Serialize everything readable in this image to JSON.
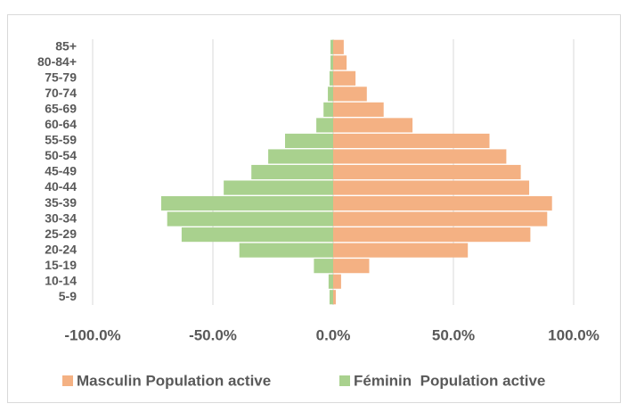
{
  "chart_data": {
    "type": "pyramid",
    "categories": [
      "85+",
      "80-84+",
      "75-79",
      "70-74",
      "65-69",
      "60-64",
      "55-59",
      "50-54",
      "45-49",
      "40-44",
      "35-39",
      "30-34",
      "25-29",
      "20-24",
      "15-19",
      "10-14",
      "5-9"
    ],
    "series": [
      {
        "name": "Masculin Population active",
        "color": "#f4b183",
        "values": [
          4.4,
          5.6,
          9.3,
          14,
          21,
          33,
          65,
          72,
          78,
          81.5,
          91,
          89,
          82,
          56,
          15,
          3.3,
          1.1
        ]
      },
      {
        "name": "Féminin  Population active",
        "color": "#a9d18e",
        "values": [
          -1.1,
          -1.1,
          -1.5,
          -2.2,
          -4,
          -7,
          -20,
          -27,
          -34,
          -45.5,
          -71.5,
          -69,
          -63,
          -39,
          -8,
          -1.9,
          -1.5
        ]
      }
    ],
    "xlim": [
      -100,
      100
    ],
    "xticks": [
      {
        "value": -100,
        "label": "-100.0%"
      },
      {
        "value": -50,
        "label": "-50.0%"
      },
      {
        "value": 0,
        "label": "0.0%"
      },
      {
        "value": 50,
        "label": "50.0%"
      },
      {
        "value": 100,
        "label": "100.0%"
      }
    ],
    "grid": true,
    "legend": "bottom"
  }
}
